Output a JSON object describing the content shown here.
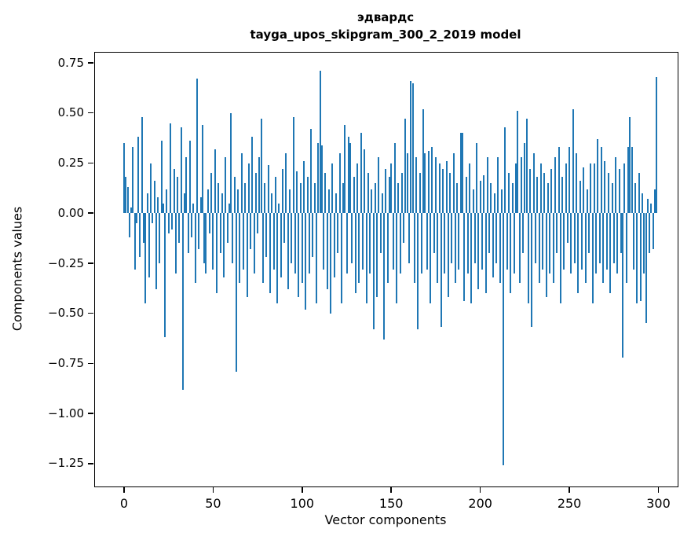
{
  "title": {
    "line1": "эдвардс",
    "line2": "tayga_upos_skipgram_300_2_2019 model"
  },
  "chart_data": {
    "type": "bar",
    "title": "эдвардс",
    "subtitle": "tayga_upos_skipgram_300_2_2019 model",
    "xlabel": "Vector components",
    "ylabel": "Components values",
    "bar_color": "#1f77b4",
    "grid": false,
    "legend": "none",
    "xlim": [
      -16.3,
      310.8
    ],
    "ylim": [
      -1.364,
      0.801
    ],
    "xticks": [
      0,
      50,
      100,
      150,
      200,
      250,
      300
    ],
    "xtick_labels": [
      "0",
      "50",
      "100",
      "150",
      "200",
      "250",
      "300"
    ],
    "yticks": [
      0.75,
      0.5,
      0.25,
      0.0,
      -0.25,
      -0.5,
      -0.75,
      -1.0,
      -1.25
    ],
    "ytick_labels": [
      "0.75",
      "0.50",
      "0.25",
      "0.00",
      "−0.25",
      "−0.50",
      "−0.75",
      "−1.00",
      "−1.25"
    ],
    "x": "component index 0..299",
    "values": [
      0.35,
      0.18,
      0.13,
      -0.12,
      0.03,
      0.33,
      -0.28,
      -0.05,
      0.38,
      -0.22,
      0.48,
      -0.15,
      -0.45,
      0.1,
      -0.32,
      0.25,
      -0.05,
      0.16,
      -0.38,
      0.08,
      -0.25,
      0.36,
      0.05,
      -0.62,
      0.12,
      -0.1,
      0.45,
      -0.08,
      0.22,
      -0.3,
      0.18,
      -0.15,
      0.43,
      -0.88,
      0.1,
      0.28,
      -0.2,
      0.36,
      -0.12,
      0.05,
      -0.35,
      0.67,
      -0.18,
      0.08,
      0.44,
      -0.25,
      -0.3,
      0.12,
      -0.1,
      0.2,
      -0.28,
      0.32,
      -0.4,
      0.15,
      -0.2,
      0.1,
      -0.32,
      0.28,
      -0.15,
      0.05,
      0.5,
      -0.25,
      0.18,
      -0.79,
      0.12,
      -0.35,
      0.3,
      -0.28,
      0.15,
      -0.42,
      0.25,
      -0.18,
      0.38,
      -0.3,
      0.2,
      -0.1,
      0.28,
      0.47,
      -0.35,
      0.15,
      -0.22,
      0.24,
      -0.4,
      0.1,
      -0.28,
      0.18,
      -0.45,
      0.05,
      -0.32,
      0.22,
      -0.15,
      0.3,
      -0.38,
      0.12,
      -0.25,
      0.48,
      -0.3,
      0.21,
      -0.42,
      0.15,
      -0.35,
      0.26,
      -0.48,
      0.18,
      -0.3,
      0.42,
      -0.22,
      0.15,
      -0.45,
      0.35,
      0.71,
      0.34,
      -0.28,
      0.2,
      -0.38,
      0.12,
      -0.5,
      0.25,
      -0.32,
      0.1,
      -0.2,
      0.3,
      -0.45,
      0.15,
      0.44,
      -0.3,
      0.38,
      0.35,
      -0.25,
      0.18,
      -0.4,
      0.25,
      -0.35,
      0.4,
      -0.28,
      0.32,
      -0.45,
      0.2,
      -0.3,
      0.12,
      -0.58,
      0.15,
      -0.42,
      0.28,
      -0.2,
      0.1,
      -0.63,
      0.22,
      -0.35,
      0.18,
      0.25,
      -0.28,
      0.35,
      -0.45,
      0.15,
      -0.3,
      0.2,
      -0.15,
      0.47,
      0.3,
      -0.25,
      0.66,
      0.65,
      -0.35,
      0.28,
      -0.58,
      0.2,
      -0.3,
      0.52,
      0.3,
      -0.28,
      0.31,
      -0.45,
      0.33,
      -0.2,
      0.28,
      -0.35,
      0.25,
      -0.57,
      0.22,
      -0.3,
      0.26,
      -0.42,
      0.2,
      -0.25,
      0.3,
      -0.35,
      0.15,
      -0.28,
      0.4,
      0.4,
      -0.44,
      0.18,
      -0.3,
      0.25,
      -0.45,
      0.12,
      -0.25,
      0.35,
      -0.38,
      0.16,
      -0.28,
      0.19,
      -0.4,
      0.28,
      -0.2,
      0.15,
      -0.32,
      0.1,
      -0.25,
      0.28,
      -0.35,
      0.12,
      -1.26,
      0.43,
      -0.28,
      0.2,
      -0.4,
      0.15,
      -0.3,
      0.25,
      0.51,
      -0.35,
      0.28,
      -0.2,
      0.35,
      0.47,
      -0.45,
      0.22,
      -0.57,
      0.3,
      -0.25,
      0.18,
      -0.35,
      0.25,
      -0.28,
      0.2,
      -0.42,
      0.15,
      -0.3,
      0.22,
      -0.35,
      0.28,
      -0.2,
      0.33,
      -0.45,
      0.18,
      -0.28,
      0.25,
      -0.15,
      0.33,
      -0.3,
      0.52,
      -0.25,
      0.3,
      -0.4,
      0.16,
      -0.28,
      0.23,
      -0.35,
      0.12,
      -0.2,
      0.25,
      -0.45,
      0.25,
      -0.3,
      0.37,
      -0.25,
      0.33,
      -0.35,
      0.26,
      -0.28,
      0.2,
      -0.4,
      0.15,
      -0.25,
      0.28,
      -0.3,
      0.22,
      -0.2,
      -0.72,
      0.25,
      -0.35,
      0.33,
      0.48,
      0.33,
      -0.28,
      0.15,
      -0.45,
      0.2,
      -0.44,
      0.1,
      -0.3,
      -0.55,
      0.07,
      -0.2,
      0.05,
      -0.18,
      0.12,
      0.68
    ]
  },
  "axes": {
    "xlabel": "Vector components",
    "ylabel": "Components values"
  }
}
